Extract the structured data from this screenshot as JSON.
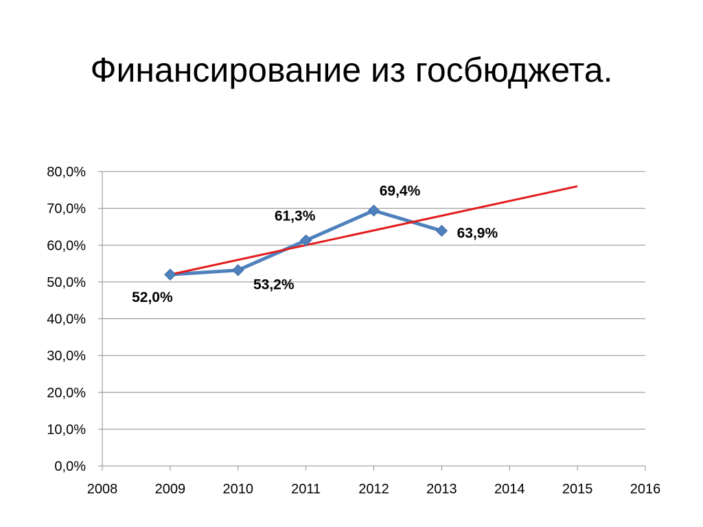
{
  "slide": {
    "title": "Финансирование из госбюджета."
  },
  "chart_data": {
    "type": "line",
    "title": "",
    "xlabel": "",
    "ylabel": "",
    "xlim": [
      2008,
      2016
    ],
    "ylim": [
      0,
      80
    ],
    "x_ticks": [
      "2008",
      "2009",
      "2010",
      "2011",
      "2012",
      "2013",
      "2014",
      "2015",
      "2016"
    ],
    "y_ticks": [
      "0,0%",
      "10,0%",
      "20,0%",
      "30,0%",
      "40,0%",
      "50,0%",
      "60,0%",
      "70,0%",
      "80,0%"
    ],
    "grid": true,
    "legend": "none",
    "series": [
      {
        "x": [
          2009,
          2010,
          2011,
          2012,
          2013
        ],
        "y": [
          52.0,
          53.2,
          61.3,
          69.4,
          63.9
        ],
        "labels": [
          "52,0%",
          "53,2%",
          "61,3%",
          "69,4%",
          "63,9%"
        ],
        "color": "#4F81BD",
        "marker": "diamond"
      },
      {
        "x": [
          2009,
          2015
        ],
        "y": [
          52.0,
          76.0
        ],
        "color": "#E31B1B",
        "line_style": "trend"
      }
    ]
  }
}
